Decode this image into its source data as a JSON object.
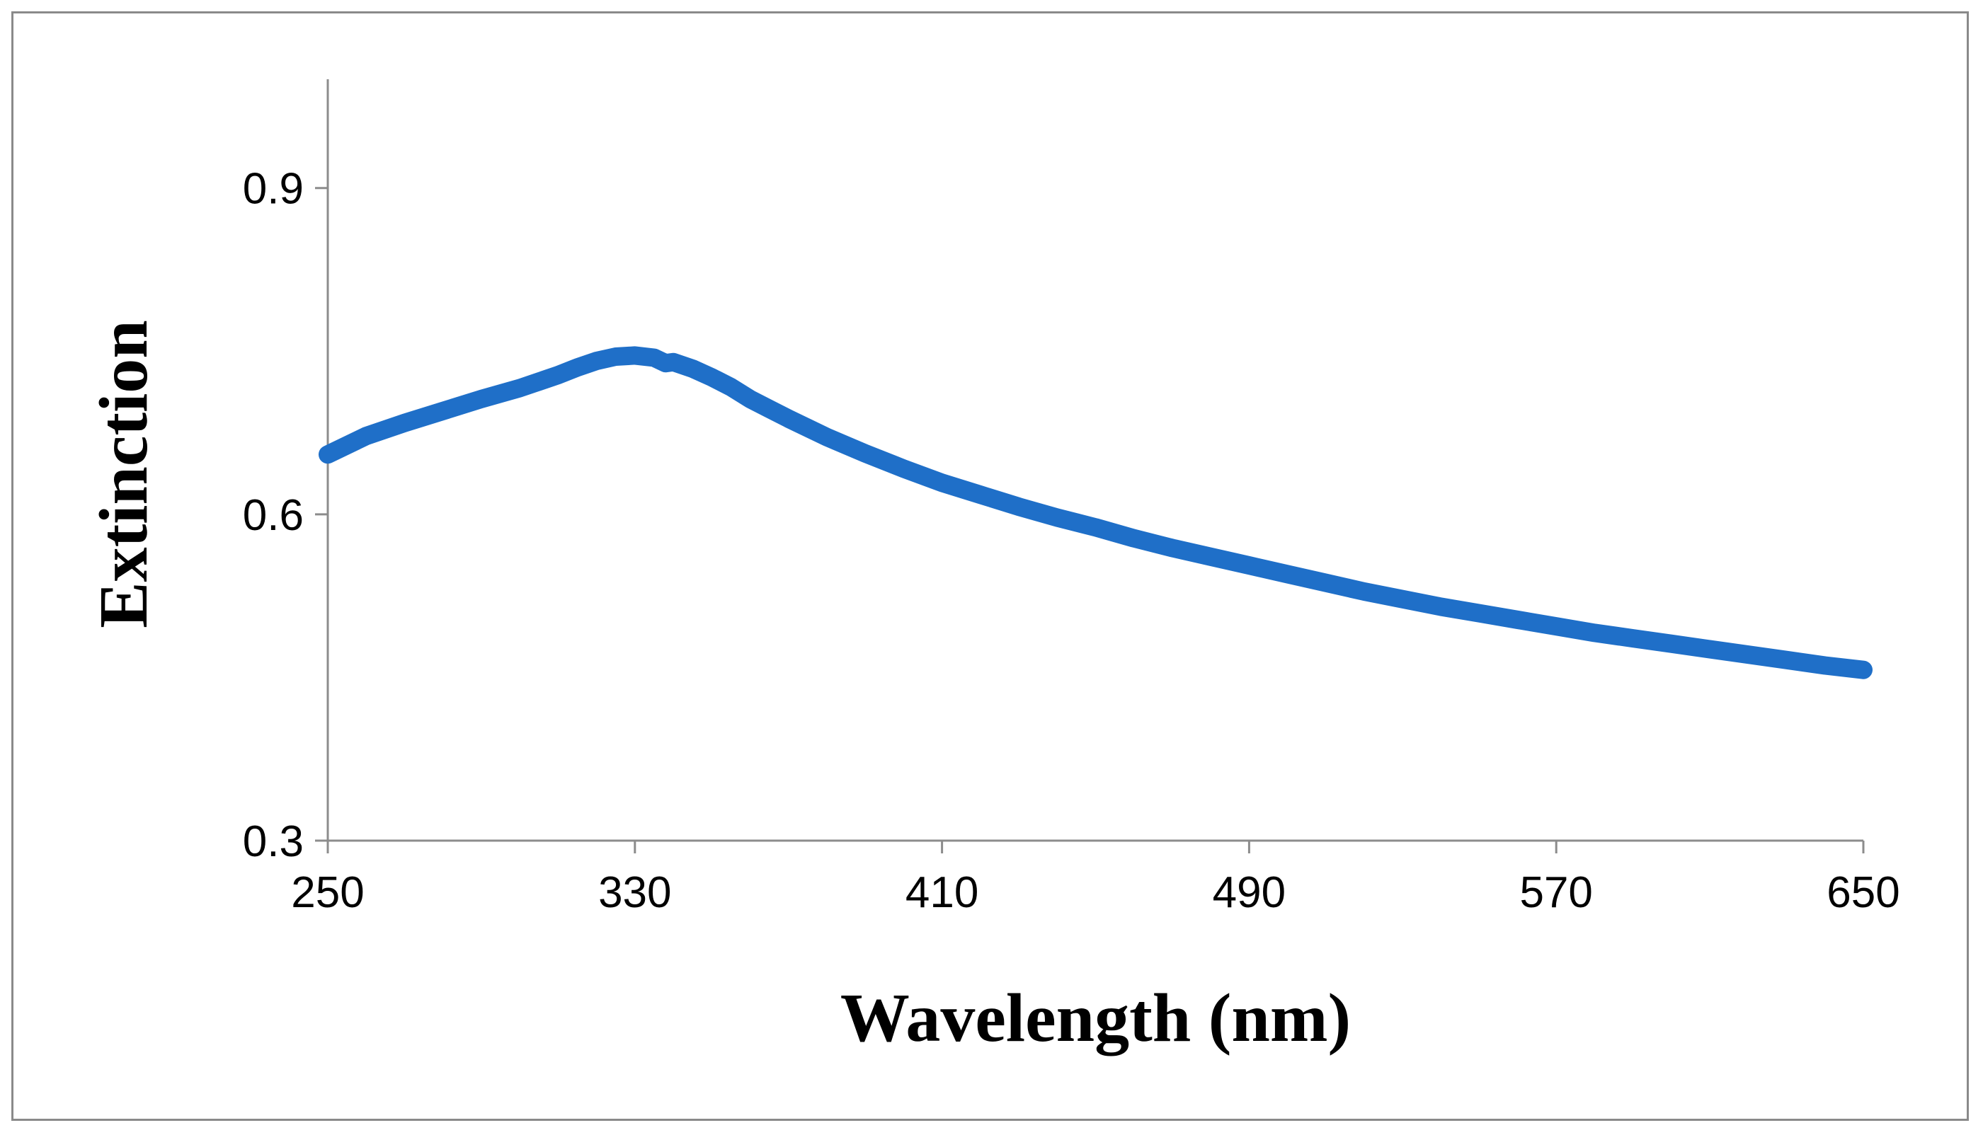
{
  "chart_data": {
    "type": "line",
    "title": "",
    "xlabel": "Wavelength (nm)",
    "ylabel": "Extinction",
    "xlim": [
      250,
      650
    ],
    "ylim": [
      0.3,
      1.0
    ],
    "x_ticks": [
      250,
      330,
      410,
      490,
      570,
      650
    ],
    "x_tick_labels": [
      "250",
      "330",
      "410",
      "490",
      "570",
      "650"
    ],
    "y_ticks": [
      0.3,
      0.6,
      0.9
    ],
    "y_tick_labels": [
      "0.3",
      "0.6",
      "0.9"
    ],
    "grid": false,
    "legend": "none",
    "series": [
      {
        "name": "Extinction",
        "color": "#1f6fc8",
        "x": [
          250,
          260,
          270,
          280,
          290,
          300,
          305,
          310,
          315,
          320,
          325,
          330,
          335,
          338,
          340,
          345,
          350,
          355,
          360,
          365,
          370,
          380,
          390,
          400,
          410,
          420,
          430,
          440,
          450,
          460,
          470,
          480,
          490,
          500,
          510,
          520,
          530,
          540,
          550,
          560,
          570,
          580,
          590,
          600,
          610,
          620,
          630,
          640,
          650
        ],
        "y": [
          0.655,
          0.672,
          0.684,
          0.695,
          0.706,
          0.716,
          0.722,
          0.728,
          0.735,
          0.741,
          0.745,
          0.746,
          0.744,
          0.739,
          0.74,
          0.734,
          0.726,
          0.717,
          0.706,
          0.697,
          0.688,
          0.671,
          0.656,
          0.642,
          0.629,
          0.618,
          0.607,
          0.597,
          0.588,
          0.578,
          0.569,
          0.561,
          0.553,
          0.545,
          0.537,
          0.529,
          0.522,
          0.515,
          0.509,
          0.503,
          0.497,
          0.491,
          0.486,
          0.481,
          0.476,
          0.471,
          0.466,
          0.461,
          0.457
        ]
      }
    ]
  }
}
